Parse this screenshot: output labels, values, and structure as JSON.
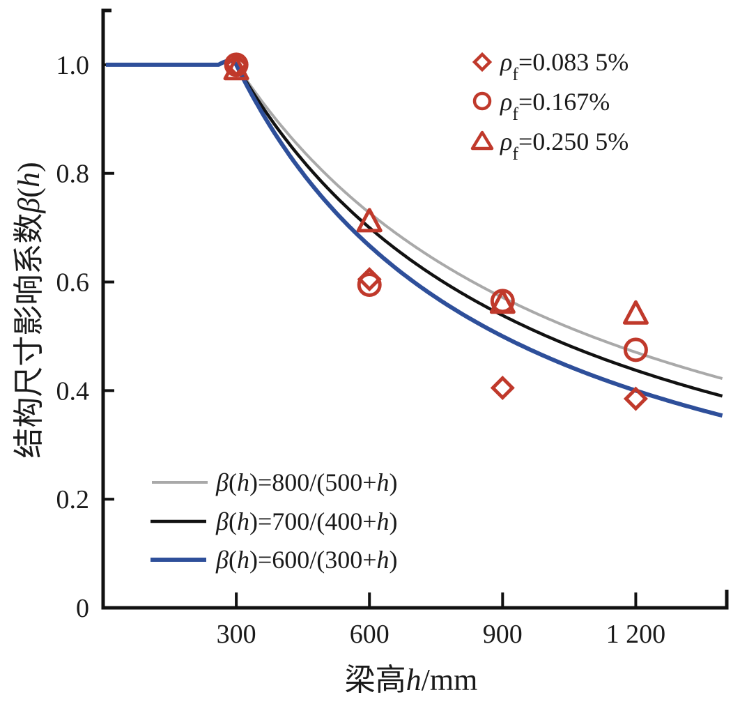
{
  "chart_data": {
    "type": "line",
    "title": "",
    "xlabel": "梁高h/mm",
    "xlabel_parts": {
      "prefix": "梁高",
      "var": "h",
      "suffix": "/mm"
    },
    "ylabel": "结构尺寸影响系数β(h)",
    "ylabel_parts": {
      "prefix": "结构尺寸影响系数",
      "var": "β",
      "open": "(",
      "arg": "h",
      "close": ")"
    },
    "xlim": [
      0,
      1405
    ],
    "ylim": [
      0,
      1.1
    ],
    "x_ticks": [
      300,
      600,
      900,
      1200
    ],
    "x_tick_labels": [
      "300",
      "600",
      "900",
      "1 200"
    ],
    "y_ticks": [
      0,
      0.2,
      0.4,
      0.6,
      0.8,
      1.0
    ],
    "y_tick_labels": [
      "0",
      "0.2",
      "0.4",
      "0.6",
      "0.8",
      "1.0"
    ],
    "grid": false,
    "series": [
      {
        "name": "β(h)=800/(500+h)",
        "formula": {
          "a": 800,
          "b": 500
        },
        "color": "#a9a9a9",
        "flat_value": 1.0,
        "flat_until": 300,
        "x_end": 1397
      },
      {
        "name": "β(h)=700/(400+h)",
        "formula": {
          "a": 700,
          "b": 400
        },
        "color": "#111111",
        "flat_value": 1.0,
        "flat_until": 300,
        "x_end": 1397
      },
      {
        "name": "β(h)=600/(300+h)",
        "formula": {
          "a": 600,
          "b": 300
        },
        "color": "#2e4f9a",
        "flat_value": 1.0,
        "flat_until": 300,
        "x_end": 1397
      }
    ],
    "scatter": [
      {
        "name": "ρf=0.083 5%",
        "marker": "diamond",
        "color": "#c0392b",
        "points": [
          [
            300,
            1.0
          ],
          [
            600,
            0.605
          ],
          [
            900,
            0.405
          ],
          [
            1200,
            0.385
          ]
        ]
      },
      {
        "name": "ρf=0.167%",
        "marker": "circle",
        "color": "#c0392b",
        "points": [
          [
            300,
            1.0
          ],
          [
            600,
            0.595
          ],
          [
            900,
            0.565
          ],
          [
            1200,
            0.475
          ]
        ]
      },
      {
        "name": "ρf=0.250 5%",
        "marker": "triangle",
        "color": "#c0392b",
        "points": [
          [
            300,
            0.99
          ],
          [
            600,
            0.71
          ],
          [
            900,
            0.56
          ],
          [
            1200,
            0.54
          ]
        ]
      }
    ],
    "legend_markers": {
      "placement": "top-right",
      "entries": [
        {
          "symbol": "ρ",
          "sub": "f",
          "value": "=0.083 5%",
          "marker": "diamond"
        },
        {
          "symbol": "ρ",
          "sub": "f",
          "value": "=0.167%",
          "marker": "circle"
        },
        {
          "symbol": "ρ",
          "sub": "f",
          "value": "=0.250 5%",
          "marker": "triangle"
        }
      ]
    },
    "legend_lines": {
      "placement": "bottom-left",
      "entries": [
        {
          "lhs": "β",
          "arg": "h",
          "rhs_a": "=800/(500+",
          "rhs_var": "h",
          "rhs_close": ")"
        },
        {
          "lhs": "β",
          "arg": "h",
          "rhs_a": "=700/(400+",
          "rhs_var": "h",
          "rhs_close": ")"
        },
        {
          "lhs": "β",
          "arg": "h",
          "rhs_a": "=600/(300+",
          "rhs_var": "h",
          "rhs_close": ")"
        }
      ]
    }
  }
}
